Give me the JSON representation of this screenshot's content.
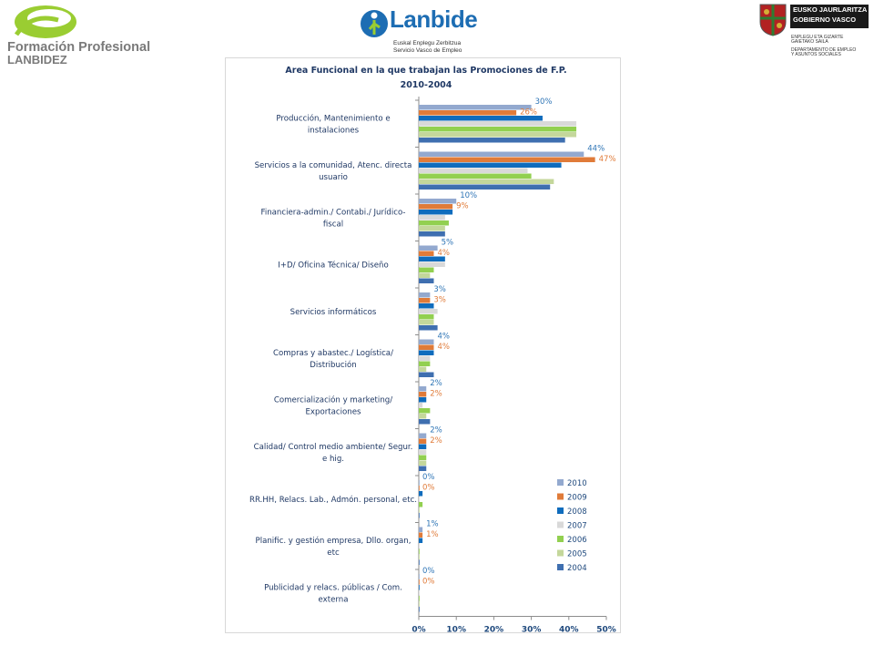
{
  "header": {
    "left_logo": {
      "line1": "Formación Profesional",
      "line2": "LANBIDEZ"
    },
    "center_logo": {
      "name": "Lanbide",
      "sub1": "Euskal Enplegu Zerbitzua",
      "sub2": "Servicio Vasco de Empleo"
    },
    "right_logo": {
      "line1": "EUSKO JAURLARITZA",
      "line2": "GOBIERNO VASCO",
      "dept1a": "ENPLEGU ETA GIZARTE",
      "dept1b": "GAIETAKO SAILA",
      "dept2a": "DEPARTAMENTO DE EMPLEO",
      "dept2b": "Y ASUNTOS SOCIALES"
    }
  },
  "colors": {
    "2010": "#93a9cf",
    "2009": "#e07b39",
    "2008": "#0f6cbd",
    "2007": "#d9d9d9",
    "2006": "#92d050",
    "2005": "#c4d79b",
    "2004": "#3f6fb0",
    "label_blue": "#2e75b6",
    "label_orange": "#e07b39",
    "title": "#1f3864",
    "axis_text": "#1f497d"
  },
  "chart_data": {
    "type": "bar",
    "orientation": "horizontal",
    "title_line1": "Area Funcional en la que trabajan las Promociones de F.P.",
    "title_line2": "2010-2004",
    "categories": [
      [
        "Producción, Mantenimiento e",
        "instalaciones"
      ],
      [
        "Servicios a la comunidad, Atenc. directa",
        "usuario"
      ],
      [
        "Financiera-admin./ Contabi./ Jurídico-",
        "fiscal"
      ],
      [
        "I+D/ Oficina Técnica/ Diseño"
      ],
      [
        "Servicios informáticos"
      ],
      [
        "Compras y abastec./ Logística/",
        "Distribución"
      ],
      [
        "Comercialización y marketing/",
        "Exportaciones"
      ],
      [
        "Calidad/ Control medio ambiente/ Segur.",
        "e hig."
      ],
      [
        "RR.HH, Relacs. Lab., Admón. personal, etc."
      ],
      [
        "Planific. y gestión empresa, Dllo. organ,",
        "etc"
      ],
      [
        "Publicidad y relacs. públicas / Com.",
        "externa"
      ]
    ],
    "series": [
      {
        "name": "2010",
        "values": [
          30,
          44,
          10,
          5,
          3,
          4,
          2,
          2,
          0,
          1,
          0
        ]
      },
      {
        "name": "2009",
        "values": [
          26,
          47,
          9,
          4,
          3,
          4,
          2,
          2,
          0,
          1,
          0
        ]
      },
      {
        "name": "2008",
        "values": [
          33,
          38,
          9,
          7,
          4,
          4,
          2,
          2,
          1,
          1,
          0
        ]
      },
      {
        "name": "2007",
        "values": [
          42,
          29,
          7,
          7,
          5,
          3,
          1,
          2,
          0,
          0,
          0
        ]
      },
      {
        "name": "2006",
        "values": [
          42,
          30,
          8,
          4,
          4,
          3,
          3,
          2,
          1,
          0,
          0
        ]
      },
      {
        "name": "2005",
        "values": [
          42,
          36,
          7,
          3,
          4,
          2,
          2,
          2,
          0,
          0,
          0
        ]
      },
      {
        "name": "2004",
        "values": [
          39,
          35,
          7,
          4,
          5,
          4,
          3,
          2,
          0,
          0,
          0
        ]
      }
    ],
    "data_labels_2010": [
      "30%",
      "44%",
      "10%",
      "5%",
      "3%",
      "4%",
      "2%",
      "2%",
      "0%",
      "1%",
      "0%"
    ],
    "data_labels_2009": [
      "26%",
      "47%",
      "9%",
      "4%",
      "3%",
      "4%",
      "2%",
      "2%",
      "0%",
      "1%",
      "0%"
    ],
    "x_ticks": [
      "0%",
      "10%",
      "20%",
      "30%",
      "40%",
      "50%"
    ],
    "xlim": [
      0,
      50
    ],
    "legend_position": "bottom-right",
    "legend": [
      "2010",
      "2009",
      "2008",
      "2007",
      "2006",
      "2005",
      "2004"
    ],
    "grid": false
  }
}
